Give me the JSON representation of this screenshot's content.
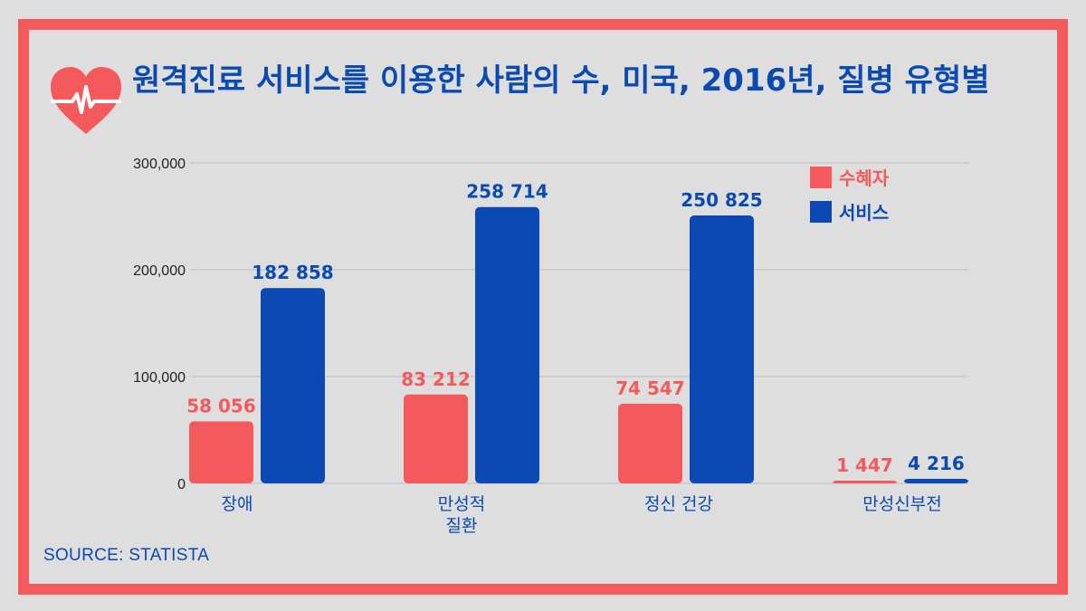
{
  "title": "원격진료 서비스를 이용한 사람의 수, 미국, 2016년, 질병 유형별",
  "source": "SOURCE: STATISTA",
  "icons": {
    "header": "heart-pulse-icon"
  },
  "colors": {
    "recipients": "#f45a5b",
    "services": "#0a4ab2",
    "frame": "#f45a5b",
    "background": "#dedede"
  },
  "chart_data": {
    "type": "bar",
    "categories": [
      [
        "장애"
      ],
      [
        "만성적",
        "질환"
      ],
      [
        "정신 건강"
      ],
      [
        "만성신부전"
      ]
    ],
    "series": [
      {
        "name": "수혜자",
        "values": [
          58056,
          83212,
          74547,
          1447
        ],
        "labels": [
          "58 056",
          "83 212",
          "74 547",
          "1 447"
        ]
      },
      {
        "name": "서비스",
        "values": [
          182858,
          258714,
          250825,
          4216
        ],
        "labels": [
          "182 858",
          "258 714",
          "250 825",
          "4 216"
        ]
      }
    ],
    "yticks": [
      "0",
      "100,000",
      "200,000",
      "300,000"
    ],
    "ylim": [
      0,
      300000
    ],
    "grid": true,
    "legend_position": "top-right"
  }
}
